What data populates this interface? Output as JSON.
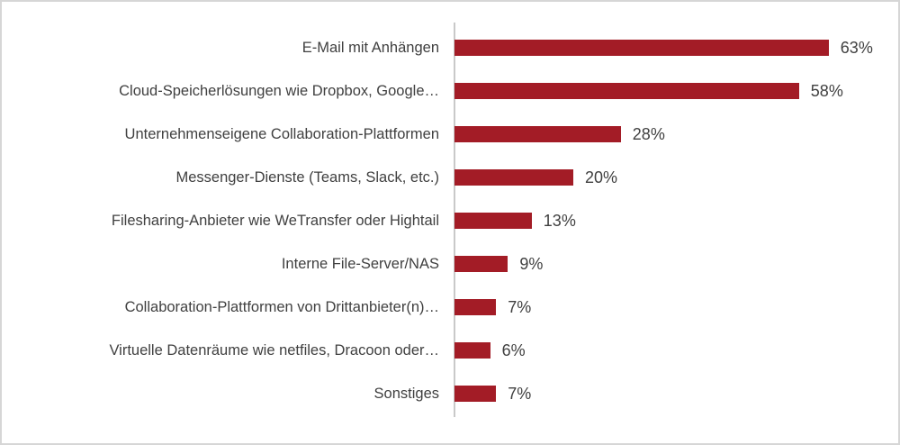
{
  "chart_data": {
    "type": "bar",
    "orientation": "horizontal",
    "title": "",
    "xlabel": "",
    "ylabel": "",
    "categories": [
      "E-Mail mit Anhängen",
      "Cloud-Speicherlösungen wie Dropbox, Google…",
      "Unternehmenseigene Collaboration-Plattformen",
      "Messenger-Dienste (Teams, Slack, etc.)",
      "Filesharing-Anbieter wie WeTransfer oder Hightail",
      "Interne File-Server/NAS",
      "Collaboration-Plattformen von Drittanbieter(n)…",
      "Virtuelle Datenräume wie netfiles, Dracoon oder…",
      "Sonstiges"
    ],
    "values": [
      63,
      58,
      28,
      20,
      13,
      9,
      7,
      6,
      7
    ],
    "value_labels": [
      "63%",
      "58%",
      "28%",
      "20%",
      "13%",
      "9%",
      "7%",
      "6%",
      "7%"
    ],
    "xlim": [
      0,
      70
    ],
    "grid": false,
    "legend": false,
    "data_labels_position": "outside-end",
    "colors": {
      "bar": "#a31c26",
      "axis_line": "#c9c9c9",
      "text": "#404040",
      "border": "#d6d6d6",
      "background": "#ffffff"
    }
  }
}
